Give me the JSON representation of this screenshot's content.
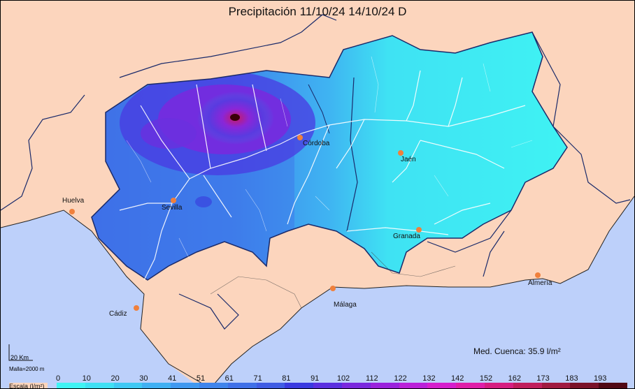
{
  "title": "Precipitación 11/10/24 14/10/24 D",
  "cities": [
    {
      "name": "Huelva",
      "show_dot": true
    },
    {
      "name": "Sevilla",
      "show_dot": true
    },
    {
      "name": "Córdoba",
      "show_dot": true
    },
    {
      "name": "Jaén",
      "show_dot": true
    },
    {
      "name": "Granada",
      "show_dot": true
    },
    {
      "name": "Almería",
      "show_dot": true
    },
    {
      "name": "Málaga",
      "show_dot": true
    },
    {
      "name": "Cádiz",
      "show_dot": true
    }
  ],
  "scale_bar": {
    "label": "20 Km",
    "mesh": "Malla=2000 m"
  },
  "average": "Med. Cuenca: 35.9 l/m²",
  "legend": {
    "title": "Escala (l/m²)",
    "ticks": [
      "0",
      "10",
      "20",
      "30",
      "41",
      "51",
      "61",
      "71",
      "81",
      "91",
      "102",
      "112",
      "122",
      "132",
      "142",
      "152",
      "162",
      "173",
      "183",
      "193"
    ],
    "colors": [
      "#3ff3f3",
      "#3fe0f3",
      "#3fc8f3",
      "#3fb0f3",
      "#3f98f0",
      "#3f84ec",
      "#3f70e8",
      "#3f5ce4",
      "#3a3ae0",
      "#5a2fe0",
      "#7a28de",
      "#9a22dc",
      "#ba20d8",
      "#d61ecc",
      "#e01ea8",
      "#d61e80",
      "#c01e5c",
      "#a01a40",
      "#7a1228",
      "#500814"
    ]
  },
  "colors": {
    "sea": "#bdd0fa",
    "land": "#fcd5bd",
    "river": "#ffffff",
    "city_dot": "#f0803c"
  }
}
